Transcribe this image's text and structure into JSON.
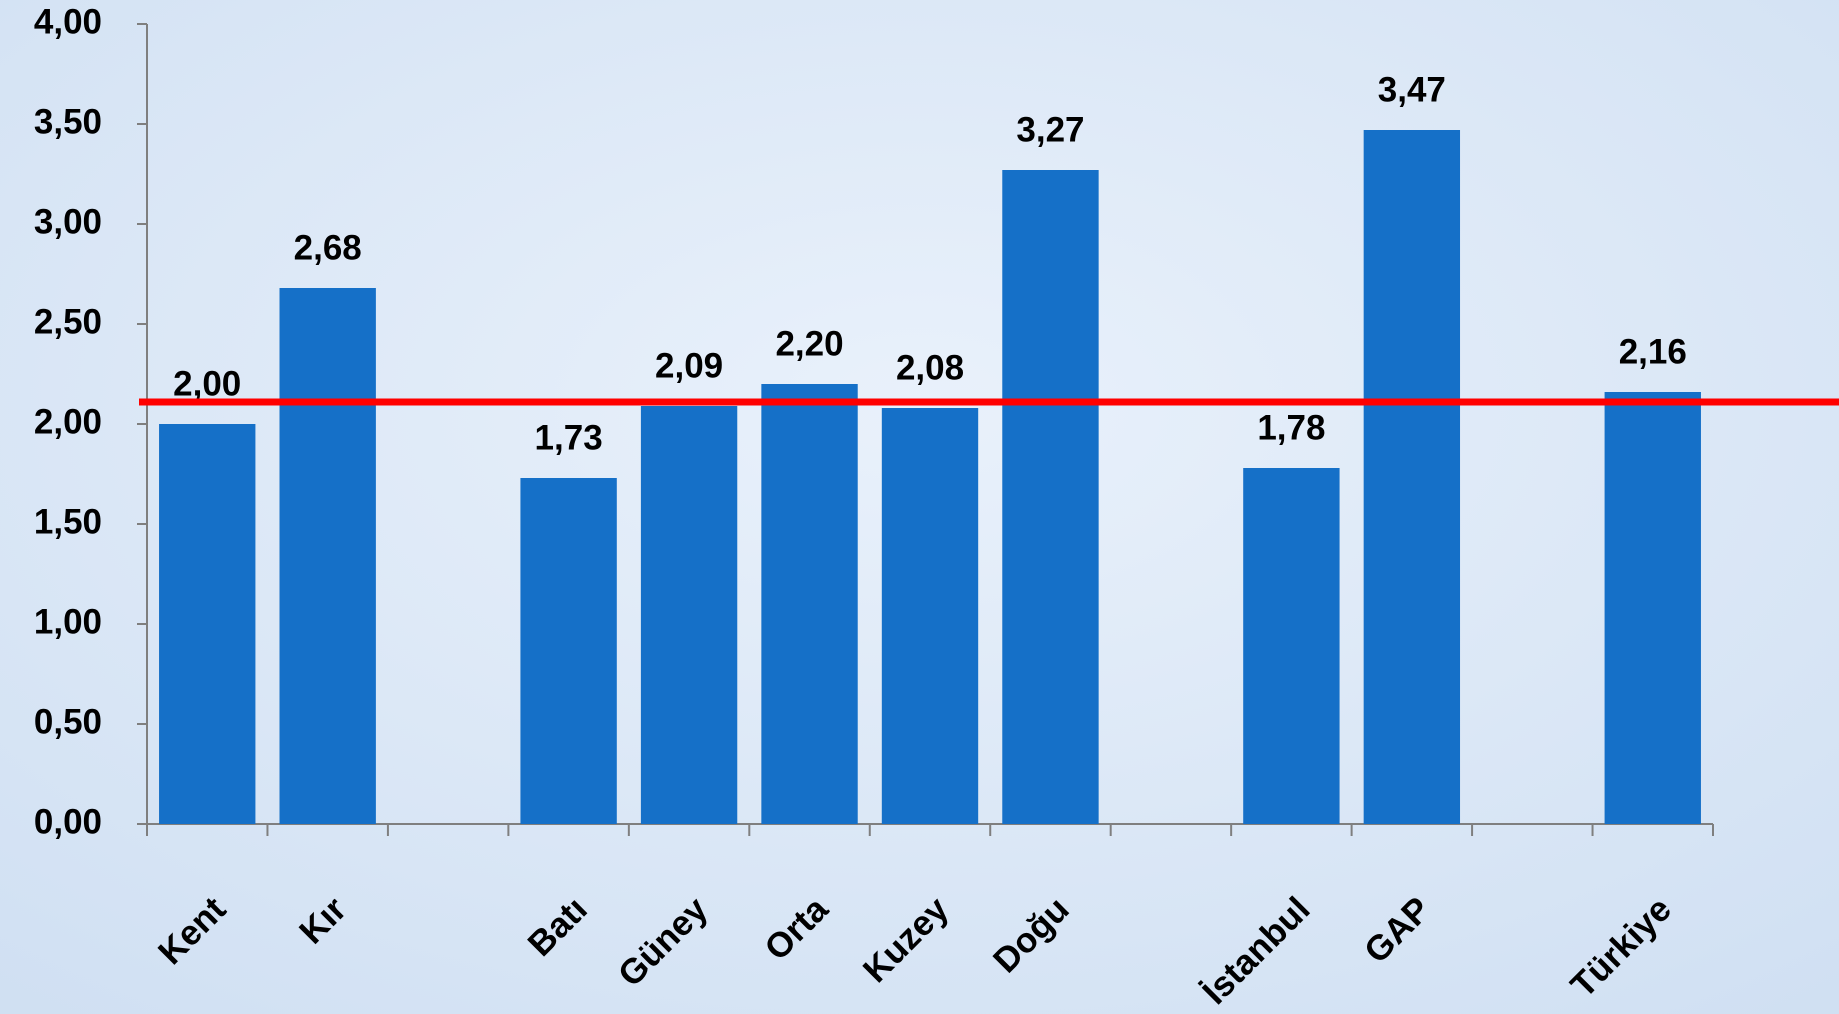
{
  "chart_data": {
    "type": "bar",
    "categories": [
      "Kent",
      "Kır",
      null,
      "Batı",
      "Güney",
      "Orta",
      "Kuzey",
      "Doğu",
      null,
      "İstanbul",
      "GAP",
      null,
      "Türkiye"
    ],
    "values": [
      2.0,
      2.68,
      null,
      1.73,
      2.09,
      2.2,
      2.08,
      3.27,
      null,
      1.78,
      3.47,
      null,
      2.16
    ],
    "value_labels": [
      "2,00",
      "2,68",
      null,
      "1,73",
      "2,09",
      "2,20",
      "2,08",
      "3,27",
      null,
      "1,78",
      "3,47",
      null,
      "2,16"
    ],
    "color": "#1570c8",
    "ylim": [
      0,
      4
    ],
    "yticks": [
      {
        "value": 0,
        "label": "0,00"
      },
      {
        "value": 0.5,
        "label": "0,50"
      },
      {
        "value": 1,
        "label": "1,00"
      },
      {
        "value": 1.5,
        "label": "1,50"
      },
      {
        "value": 2,
        "label": "2,00"
      },
      {
        "value": 2.5,
        "label": "2,50"
      },
      {
        "value": 3,
        "label": "3,00"
      },
      {
        "value": 3.5,
        "label": "3,50"
      },
      {
        "value": 4,
        "label": "4,00"
      }
    ],
    "reference_line": {
      "value": 2.11,
      "color": "#ff0000"
    },
    "grid": false
  }
}
